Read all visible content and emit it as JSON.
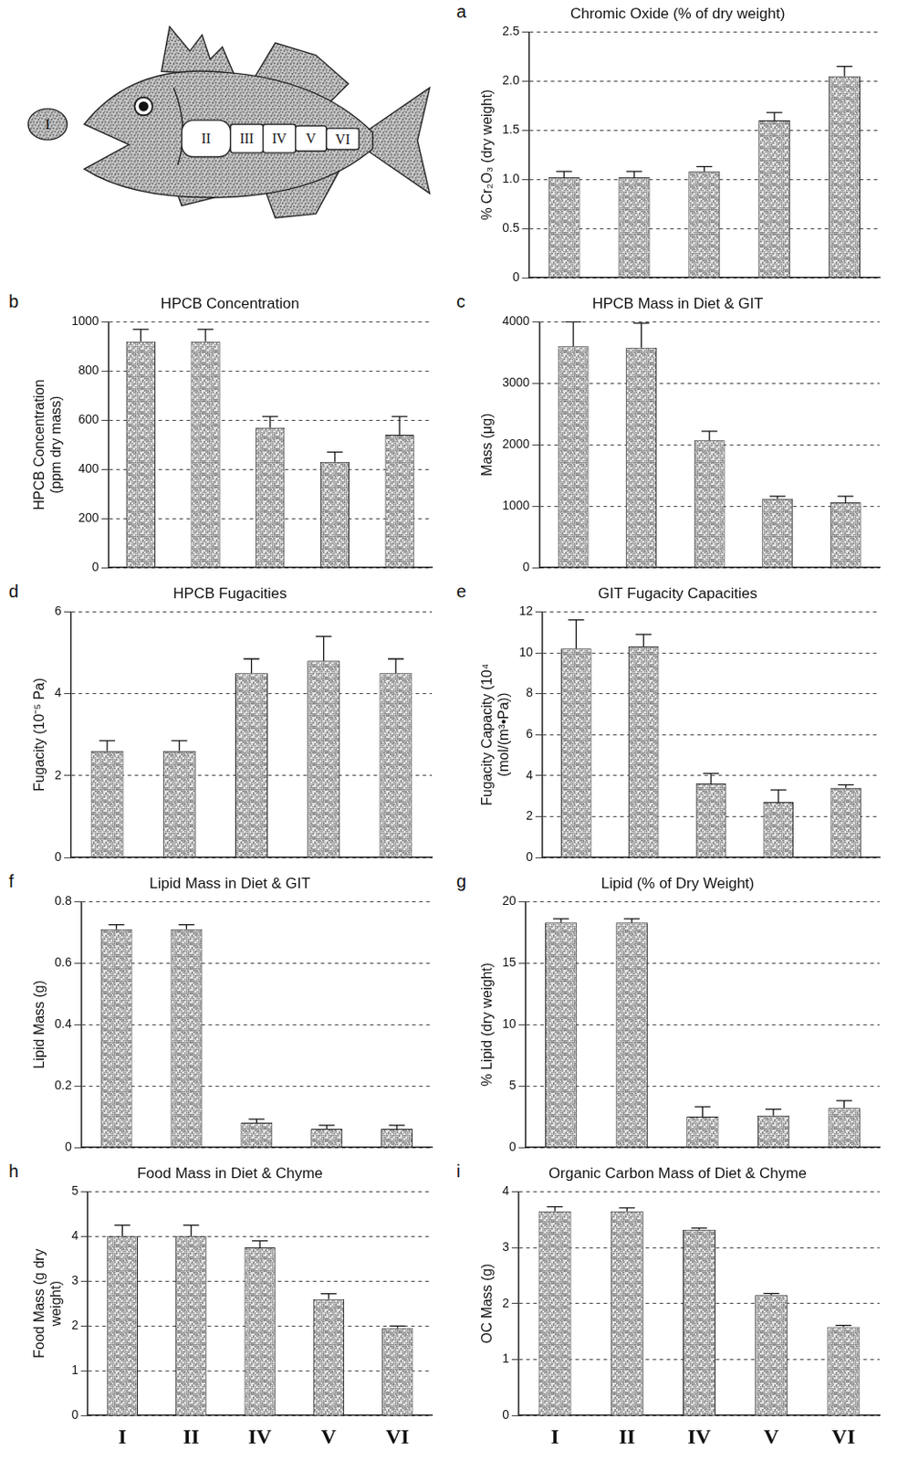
{
  "diagram": {
    "segments": [
      "I",
      "II",
      "III",
      "IV",
      "V",
      "VI"
    ]
  },
  "chart_data": [
    {
      "panel": "a",
      "type": "bar",
      "title": "Chromic Oxide (% of dry weight)",
      "y_label": "% Cr₂O₃ (dry weight)",
      "categories": [
        null,
        null,
        null,
        null,
        null
      ],
      "values": [
        1.02,
        1.02,
        1.08,
        1.6,
        2.05
      ],
      "errors": [
        0.06,
        0.06,
        0.05,
        0.08,
        0.1
      ],
      "color": "#7f7f7f",
      "ylim": [
        0,
        2.5
      ],
      "yticks": [
        0,
        {
          "value": 0.5,
          "label": "0.5"
        },
        {
          "value": 1,
          "label": "1.0"
        },
        {
          "value": 1.5,
          "label": "1.5"
        },
        {
          "value": 2,
          "label": "2.0"
        },
        {
          "value": 2.5,
          "label": "2.5"
        }
      ],
      "grid": true,
      "tick_labels": "y"
    },
    {
      "panel": "b",
      "type": "bar",
      "title": "HPCB Concentration",
      "y_label": "HPCB Concentration (ppm dry mass)",
      "categories": [
        null,
        null,
        null,
        null,
        null
      ],
      "values": [
        920,
        920,
        570,
        430,
        540
      ],
      "errors": [
        50,
        50,
        45,
        40,
        75
      ],
      "color": "#7f7f7f",
      "ylim": [
        0,
        1000
      ],
      "yticks": [
        0,
        200,
        400,
        600,
        800,
        1000
      ],
      "grid": true,
      "tick_labels": "y"
    },
    {
      "panel": "c",
      "type": "bar",
      "title": "HPCB Mass in Diet & GIT",
      "y_label": "Mass (μg)",
      "categories": [
        null,
        null,
        null,
        null,
        null
      ],
      "values": [
        3600,
        3580,
        2070,
        1120,
        1060
      ],
      "errors": [
        400,
        400,
        150,
        40,
        100
      ],
      "color": "#7f7f7f",
      "ylim": [
        0,
        4000
      ],
      "yticks": [
        0,
        1000,
        2000,
        3000,
        4000
      ],
      "grid": true,
      "tick_labels": "y"
    },
    {
      "panel": "d",
      "type": "bar",
      "title": "HPCB Fugacities",
      "y_label": "Fugacity (10⁻⁵ Pa)",
      "categories": [
        null,
        null,
        null,
        null,
        null
      ],
      "values": [
        2.6,
        2.6,
        4.5,
        4.8,
        4.5
      ],
      "errors": [
        0.25,
        0.25,
        0.35,
        0.6,
        0.35
      ],
      "color": "#7f7f7f",
      "ylim": [
        0,
        6
      ],
      "yticks": [
        0,
        2,
        4,
        6
      ],
      "grid": true,
      "tick_labels": "y"
    },
    {
      "panel": "e",
      "type": "bar",
      "title": "GIT Fugacity Capacities",
      "y_label": "Fugacity Capacity (10⁴ (mol/(m³•Pa))",
      "categories": [
        null,
        null,
        null,
        null,
        null
      ],
      "values": [
        10.2,
        10.3,
        3.6,
        2.7,
        3.4
      ],
      "errors": [
        1.4,
        0.6,
        0.5,
        0.6,
        0.15
      ],
      "color": "#7f7f7f",
      "ylim": [
        0,
        12
      ],
      "yticks": [
        0,
        2,
        4,
        6,
        8,
        10,
        12
      ],
      "grid": true,
      "tick_labels": "y"
    },
    {
      "panel": "f",
      "type": "bar",
      "title": "Lipid Mass in Diet & GIT",
      "y_label": "Lipid Mass (g)",
      "categories": [
        null,
        null,
        null,
        null,
        null
      ],
      "values": [
        0.71,
        0.71,
        0.08,
        0.06,
        0.06
      ],
      "errors": [
        0.015,
        0.015,
        0.012,
        0.012,
        0.012
      ],
      "color": "#7f7f7f",
      "ylim": [
        0,
        0.8
      ],
      "yticks": [
        0,
        0.2,
        0.4,
        0.6,
        0.8
      ],
      "grid": true,
      "tick_labels": "y"
    },
    {
      "panel": "g",
      "type": "bar",
      "title": "Lipid (% of Dry Weight)",
      "y_label": "% Lipid (dry weight)",
      "categories": [
        null,
        null,
        null,
        null,
        null
      ],
      "values": [
        18.3,
        18.3,
        2.5,
        2.6,
        3.2
      ],
      "errors": [
        0.3,
        0.3,
        0.8,
        0.5,
        0.6
      ],
      "color": "#7f7f7f",
      "ylim": [
        0,
        20
      ],
      "yticks": [
        0,
        5,
        10,
        15,
        20
      ],
      "grid": true,
      "tick_labels": "y"
    },
    {
      "panel": "h",
      "type": "bar",
      "title": "Food Mass in Diet & Chyme",
      "y_label": "Food Mass (g dry weight)",
      "categories": [
        "I",
        "II",
        "IV",
        "V",
        "VI"
      ],
      "values": [
        4.0,
        4.0,
        3.75,
        2.6,
        1.95
      ],
      "errors": [
        0.25,
        0.25,
        0.15,
        0.12,
        0.05
      ],
      "color": "#7f7f7f",
      "ylim": [
        0,
        5
      ],
      "yticks": [
        0,
        1,
        2,
        3,
        4,
        5
      ],
      "grid": true
    },
    {
      "panel": "i",
      "type": "bar",
      "title": "Organic Carbon Mass of Diet & Chyme",
      "y_label": "OC Mass (g)",
      "categories": [
        "I",
        "II",
        "IV",
        "V",
        "VI"
      ],
      "values": [
        3.65,
        3.65,
        3.32,
        2.15,
        1.58
      ],
      "errors": [
        0.08,
        0.06,
        0.03,
        0.03,
        0.03
      ],
      "color": "#7f7f7f",
      "ylim": [
        0,
        4
      ],
      "yticks": [
        0,
        1,
        2,
        3,
        4
      ],
      "grid": true
    }
  ]
}
